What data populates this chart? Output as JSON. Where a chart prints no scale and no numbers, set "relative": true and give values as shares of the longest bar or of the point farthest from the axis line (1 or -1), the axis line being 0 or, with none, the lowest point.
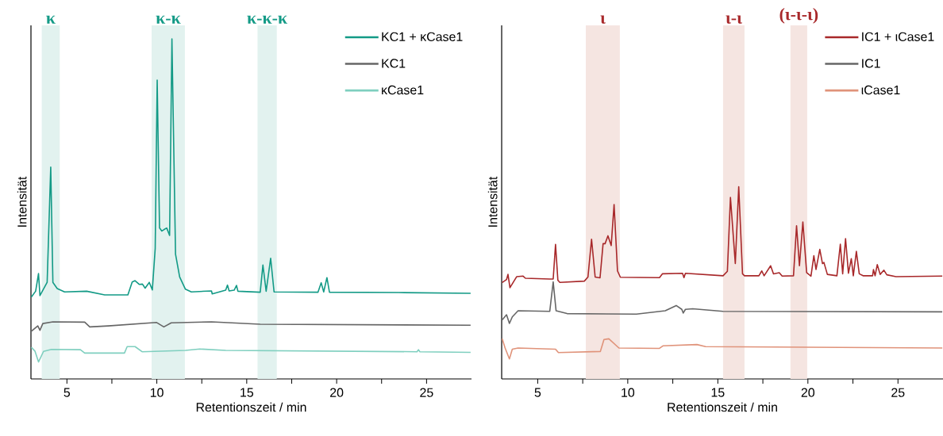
{
  "chart_data": [
    {
      "type": "line",
      "relative": true,
      "xlabel": "Retentionszeit / min",
      "ylabel": "Intensität",
      "xlim": [
        3,
        27.5
      ],
      "xticks": [
        5,
        {
          "value": 7.5,
          "label": null
        },
        10,
        {
          "value": 12.5,
          "label": null
        },
        15,
        {
          "value": 17.5,
          "label": null
        },
        20,
        {
          "value": 22.5,
          "label": null
        },
        25
      ],
      "legend": "top right",
      "bands": [
        {
          "axis": "x",
          "from": 3.6,
          "to": 4.6,
          "label": "κ",
          "color": "#e2f2ef"
        },
        {
          "axis": "x",
          "from": 9.71,
          "to": 11.56,
          "label": "κ-κ",
          "color": "#e2f2ef"
        },
        {
          "axis": "x",
          "from": 15.6,
          "to": 16.67,
          "label": "κ-κ-κ",
          "color": "#e2f2ef"
        }
      ],
      "series": [
        {
          "name": "KC1 + κCase1",
          "color": "#139a86",
          "x": [
            3.02,
            3.26,
            3.42,
            3.5,
            3.9,
            4.1,
            4.22,
            4.46,
            4.87,
            6.1,
            7.1,
            8.39,
            8.63,
            8.79,
            9.03,
            9.2,
            9.35,
            9.58,
            9.75,
            9.91,
            10.02,
            10.15,
            10.28,
            10.42,
            10.55,
            10.71,
            10.84,
            11.04,
            11.27,
            11.59,
            11.92,
            13.04,
            13.08,
            13.83,
            13.93,
            14.02,
            14.3,
            14.43,
            14.51,
            15.75,
            15.9,
            16.08,
            16.33,
            16.52,
            18.96,
            19.14,
            19.28,
            19.46,
            19.6,
            23.44,
            27.45
          ],
          "values": [
            0.241,
            0.258,
            0.31,
            0.245,
            0.284,
            0.623,
            0.284,
            0.266,
            0.256,
            0.258,
            0.247,
            0.247,
            0.285,
            0.289,
            0.278,
            0.279,
            0.267,
            0.284,
            0.262,
            0.384,
            0.879,
            0.444,
            0.435,
            0.44,
            0.444,
            0.422,
            1,
            0.367,
            0.3,
            0.264,
            0.256,
            0.259,
            0.25,
            0.261,
            0.276,
            0.259,
            0.261,
            0.275,
            0.258,
            0.255,
            0.335,
            0.258,
            0.355,
            0.256,
            0.255,
            0.283,
            0.256,
            0.298,
            0.255,
            0.254,
            0.252
          ]
        },
        {
          "name": "KC1",
          "color": "#666666",
          "x": [
            3.02,
            3.38,
            3.5,
            3.66,
            4.22,
            5.99,
            6.27,
            7.3,
            9.99,
            10.39,
            10.8,
            13.04,
            15.75,
            27.45
          ],
          "values": [
            0.14,
            0.156,
            0.143,
            0.163,
            0.168,
            0.167,
            0.153,
            0.156,
            0.166,
            0.153,
            0.165,
            0.168,
            0.161,
            0.158
          ]
        },
        {
          "name": "κCase1",
          "color": "#7fcfbf",
          "x": [
            3.02,
            3.22,
            3.42,
            3.7,
            4.14,
            5.75,
            5.99,
            8.2,
            8.35,
            8.79,
            9.18,
            11.59,
            12.39,
            13.83,
            24.47,
            24.55,
            24.63,
            27.45
          ],
          "values": [
            0.093,
            0.082,
            0.05,
            0.081,
            0.087,
            0.086,
            0.076,
            0.076,
            0.095,
            0.095,
            0.08,
            0.084,
            0.088,
            0.084,
            0.08,
            0.086,
            0.08,
            0.078
          ]
        }
      ]
    },
    {
      "type": "line",
      "relative": true,
      "xlabel": "Retentionszeit / min",
      "ylabel": "Intensität",
      "xlim": [
        3,
        27.5
      ],
      "xticks": [
        5,
        {
          "value": 7.5,
          "label": null
        },
        10,
        {
          "value": 12.5,
          "label": null
        },
        15,
        {
          "value": 17.5,
          "label": null
        },
        20,
        {
          "value": 22.5,
          "label": null
        },
        25
      ],
      "legend": "top right",
      "bands": [
        {
          "axis": "x",
          "from": 7.67,
          "to": 9.56,
          "label": "ι",
          "color": "#f5e5e1"
        },
        {
          "axis": "x",
          "from": 15.29,
          "to": 16.48,
          "label": "ι-ι",
          "color": "#f5e5e1"
        },
        {
          "axis": "x",
          "from": 19.03,
          "to": 19.96,
          "label": "(ι-ι-ι)",
          "color": "#f5e5e1"
        }
      ],
      "series": [
        {
          "name": "IC1 + ιCase1",
          "color": "#a8282a",
          "x": [
            3.03,
            3.27,
            3.35,
            3.46,
            3.83,
            4.19,
            4.32,
            5.67,
            5.86,
            5.99,
            6.12,
            6.23,
            7.59,
            7.79,
            7.99,
            8.19,
            8.46,
            8.63,
            8.74,
            8.9,
            9.08,
            9.24,
            9.43,
            9.59,
            11.76,
            11.92,
            13.04,
            13.12,
            13.2,
            15.29,
            15.53,
            15.7,
            15.97,
            16.16,
            16.37,
            16.48,
            17.28,
            17.44,
            17.57,
            17.93,
            18.09,
            18.41,
            18.57,
            19.2,
            19.37,
            19.53,
            19.72,
            19.93,
            20.17,
            20.33,
            20.45,
            20.66,
            20.81,
            20.89,
            21.08,
            21.61,
            21.8,
            21.93,
            22.09,
            22.25,
            22.41,
            22.52,
            22.69,
            22.85,
            23.06,
            23.59,
            23.64,
            23.73,
            23.85,
            24.01,
            24.22,
            24.38,
            24.89,
            27.46
          ],
          "values": [
            0.502,
            0.517,
            0.544,
            0.475,
            0.532,
            0.535,
            0.524,
            0.52,
            0.52,
            0.7,
            0.514,
            0.502,
            0.509,
            0.53,
            0.727,
            0.53,
            0.526,
            0.704,
            0.704,
            0.745,
            0.694,
            0.907,
            0.562,
            0.529,
            0.527,
            0.547,
            0.55,
            0.527,
            0.55,
            0.537,
            0.56,
            0.945,
            0.6,
            1,
            0.547,
            0.537,
            0.537,
            0.562,
            0.537,
            0.589,
            0.547,
            0.553,
            0.535,
            0.537,
            0.797,
            0.589,
            0.817,
            0.553,
            0.535,
            0.641,
            0.57,
            0.674,
            0.6,
            0.606,
            0.544,
            0.537,
            0.701,
            0.547,
            0.73,
            0.55,
            0.626,
            0.537,
            0.664,
            0.547,
            0.537,
            0.537,
            0.569,
            0.537,
            0.595,
            0.544,
            0.566,
            0.542,
            0.532,
            0.535
          ]
        },
        {
          "name": "IC1",
          "color": "#666666",
          "x": [
            3.03,
            3.27,
            3.43,
            3.59,
            3.91,
            5.67,
            5.86,
            6.02,
            6.63,
            10.48,
            12.08,
            12.69,
            13.0,
            13.08,
            13.2,
            13.6,
            15.29,
            27.46
          ],
          "values": [
            0.307,
            0.334,
            0.289,
            0.323,
            0.355,
            0.352,
            0.505,
            0.355,
            0.34,
            0.337,
            0.355,
            0.382,
            0.362,
            0.343,
            0.362,
            0.365,
            0.352,
            0.349
          ]
        },
        {
          "name": "ιCase1",
          "color": "#e0937a",
          "x": [
            3.03,
            3.19,
            3.43,
            3.59,
            3.91,
            5.99,
            6.15,
            8.48,
            8.68,
            8.95,
            9.51,
            11.76,
            11.95,
            13.84,
            14.32,
            27.46
          ],
          "values": [
            0.209,
            0.161,
            0.104,
            0.155,
            0.161,
            0.155,
            0.137,
            0.143,
            0.205,
            0.209,
            0.161,
            0.159,
            0.172,
            0.179,
            0.168,
            0.161
          ]
        }
      ]
    }
  ]
}
